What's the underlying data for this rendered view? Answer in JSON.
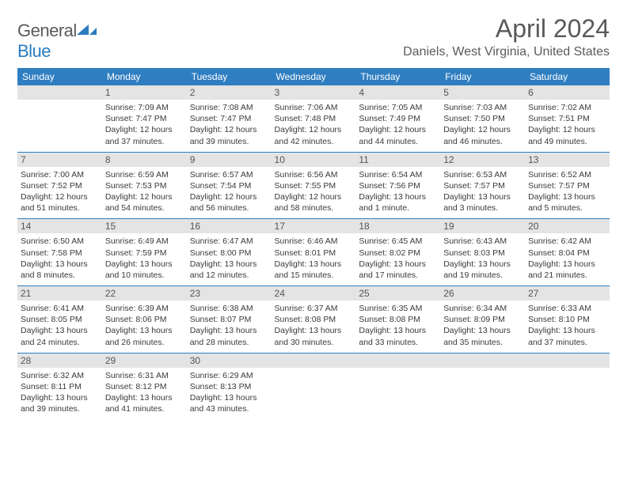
{
  "brand": {
    "part1": "General",
    "part2": "Blue"
  },
  "title": "April 2024",
  "location": "Daniels, West Virginia, United States",
  "colors": {
    "accent": "#2f7ec1",
    "daynum_bg": "#e4e4e4",
    "text": "#3a3a3a",
    "header_text": "#5a5a5a"
  },
  "fonts": {
    "title_size_pt": 24,
    "location_size_pt": 12,
    "body_size_pt": 8
  },
  "day_headers": [
    "Sunday",
    "Monday",
    "Tuesday",
    "Wednesday",
    "Thursday",
    "Friday",
    "Saturday"
  ],
  "weeks": [
    [
      null,
      {
        "d": "1",
        "sr": "Sunrise: 7:09 AM",
        "ss": "Sunset: 7:47 PM",
        "dl1": "Daylight: 12 hours",
        "dl2": "and 37 minutes."
      },
      {
        "d": "2",
        "sr": "Sunrise: 7:08 AM",
        "ss": "Sunset: 7:47 PM",
        "dl1": "Daylight: 12 hours",
        "dl2": "and 39 minutes."
      },
      {
        "d": "3",
        "sr": "Sunrise: 7:06 AM",
        "ss": "Sunset: 7:48 PM",
        "dl1": "Daylight: 12 hours",
        "dl2": "and 42 minutes."
      },
      {
        "d": "4",
        "sr": "Sunrise: 7:05 AM",
        "ss": "Sunset: 7:49 PM",
        "dl1": "Daylight: 12 hours",
        "dl2": "and 44 minutes."
      },
      {
        "d": "5",
        "sr": "Sunrise: 7:03 AM",
        "ss": "Sunset: 7:50 PM",
        "dl1": "Daylight: 12 hours",
        "dl2": "and 46 minutes."
      },
      {
        "d": "6",
        "sr": "Sunrise: 7:02 AM",
        "ss": "Sunset: 7:51 PM",
        "dl1": "Daylight: 12 hours",
        "dl2": "and 49 minutes."
      }
    ],
    [
      {
        "d": "7",
        "sr": "Sunrise: 7:00 AM",
        "ss": "Sunset: 7:52 PM",
        "dl1": "Daylight: 12 hours",
        "dl2": "and 51 minutes."
      },
      {
        "d": "8",
        "sr": "Sunrise: 6:59 AM",
        "ss": "Sunset: 7:53 PM",
        "dl1": "Daylight: 12 hours",
        "dl2": "and 54 minutes."
      },
      {
        "d": "9",
        "sr": "Sunrise: 6:57 AM",
        "ss": "Sunset: 7:54 PM",
        "dl1": "Daylight: 12 hours",
        "dl2": "and 56 minutes."
      },
      {
        "d": "10",
        "sr": "Sunrise: 6:56 AM",
        "ss": "Sunset: 7:55 PM",
        "dl1": "Daylight: 12 hours",
        "dl2": "and 58 minutes."
      },
      {
        "d": "11",
        "sr": "Sunrise: 6:54 AM",
        "ss": "Sunset: 7:56 PM",
        "dl1": "Daylight: 13 hours",
        "dl2": "and 1 minute."
      },
      {
        "d": "12",
        "sr": "Sunrise: 6:53 AM",
        "ss": "Sunset: 7:57 PM",
        "dl1": "Daylight: 13 hours",
        "dl2": "and 3 minutes."
      },
      {
        "d": "13",
        "sr": "Sunrise: 6:52 AM",
        "ss": "Sunset: 7:57 PM",
        "dl1": "Daylight: 13 hours",
        "dl2": "and 5 minutes."
      }
    ],
    [
      {
        "d": "14",
        "sr": "Sunrise: 6:50 AM",
        "ss": "Sunset: 7:58 PM",
        "dl1": "Daylight: 13 hours",
        "dl2": "and 8 minutes."
      },
      {
        "d": "15",
        "sr": "Sunrise: 6:49 AM",
        "ss": "Sunset: 7:59 PM",
        "dl1": "Daylight: 13 hours",
        "dl2": "and 10 minutes."
      },
      {
        "d": "16",
        "sr": "Sunrise: 6:47 AM",
        "ss": "Sunset: 8:00 PM",
        "dl1": "Daylight: 13 hours",
        "dl2": "and 12 minutes."
      },
      {
        "d": "17",
        "sr": "Sunrise: 6:46 AM",
        "ss": "Sunset: 8:01 PM",
        "dl1": "Daylight: 13 hours",
        "dl2": "and 15 minutes."
      },
      {
        "d": "18",
        "sr": "Sunrise: 6:45 AM",
        "ss": "Sunset: 8:02 PM",
        "dl1": "Daylight: 13 hours",
        "dl2": "and 17 minutes."
      },
      {
        "d": "19",
        "sr": "Sunrise: 6:43 AM",
        "ss": "Sunset: 8:03 PM",
        "dl1": "Daylight: 13 hours",
        "dl2": "and 19 minutes."
      },
      {
        "d": "20",
        "sr": "Sunrise: 6:42 AM",
        "ss": "Sunset: 8:04 PM",
        "dl1": "Daylight: 13 hours",
        "dl2": "and 21 minutes."
      }
    ],
    [
      {
        "d": "21",
        "sr": "Sunrise: 6:41 AM",
        "ss": "Sunset: 8:05 PM",
        "dl1": "Daylight: 13 hours",
        "dl2": "and 24 minutes."
      },
      {
        "d": "22",
        "sr": "Sunrise: 6:39 AM",
        "ss": "Sunset: 8:06 PM",
        "dl1": "Daylight: 13 hours",
        "dl2": "and 26 minutes."
      },
      {
        "d": "23",
        "sr": "Sunrise: 6:38 AM",
        "ss": "Sunset: 8:07 PM",
        "dl1": "Daylight: 13 hours",
        "dl2": "and 28 minutes."
      },
      {
        "d": "24",
        "sr": "Sunrise: 6:37 AM",
        "ss": "Sunset: 8:08 PM",
        "dl1": "Daylight: 13 hours",
        "dl2": "and 30 minutes."
      },
      {
        "d": "25",
        "sr": "Sunrise: 6:35 AM",
        "ss": "Sunset: 8:08 PM",
        "dl1": "Daylight: 13 hours",
        "dl2": "and 33 minutes."
      },
      {
        "d": "26",
        "sr": "Sunrise: 6:34 AM",
        "ss": "Sunset: 8:09 PM",
        "dl1": "Daylight: 13 hours",
        "dl2": "and 35 minutes."
      },
      {
        "d": "27",
        "sr": "Sunrise: 6:33 AM",
        "ss": "Sunset: 8:10 PM",
        "dl1": "Daylight: 13 hours",
        "dl2": "and 37 minutes."
      }
    ],
    [
      {
        "d": "28",
        "sr": "Sunrise: 6:32 AM",
        "ss": "Sunset: 8:11 PM",
        "dl1": "Daylight: 13 hours",
        "dl2": "and 39 minutes."
      },
      {
        "d": "29",
        "sr": "Sunrise: 6:31 AM",
        "ss": "Sunset: 8:12 PM",
        "dl1": "Daylight: 13 hours",
        "dl2": "and 41 minutes."
      },
      {
        "d": "30",
        "sr": "Sunrise: 6:29 AM",
        "ss": "Sunset: 8:13 PM",
        "dl1": "Daylight: 13 hours",
        "dl2": "and 43 minutes."
      },
      null,
      null,
      null,
      null
    ]
  ]
}
